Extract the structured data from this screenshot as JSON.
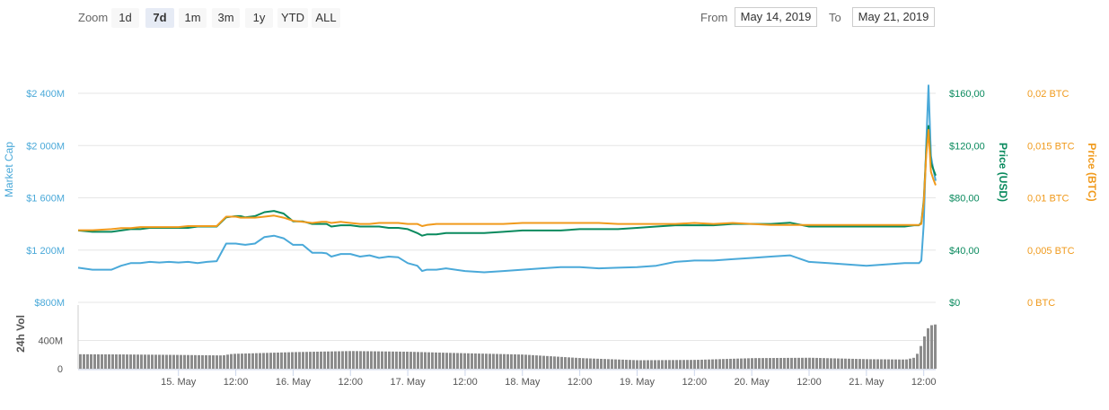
{
  "toolbar": {
    "zoom_label": "Zoom",
    "zoom_buttons": [
      "1d",
      "7d",
      "1m",
      "3m",
      "1y",
      "YTD",
      "ALL"
    ],
    "active_zoom": "7d",
    "from_label": "From",
    "from_value": "May 14, 2019",
    "to_label": "To",
    "to_value": "May 21, 2019"
  },
  "chart_data": {
    "type": "line",
    "axes": {
      "market_cap": {
        "title": "Market Cap",
        "ticks": [
          "$800M",
          "$1 200M",
          "$1 600M",
          "$2 000M",
          "$2 400M"
        ],
        "ylim": [
          800,
          2400
        ],
        "unit": "M USD",
        "color": "#4aa9d9"
      },
      "price_usd": {
        "title": "Price (USD)",
        "ticks": [
          "$0",
          "$40,00",
          "$80,00",
          "$120,00",
          "$160,00"
        ],
        "ylim": [
          0,
          160
        ],
        "color": "#0a8a5e"
      },
      "price_btc": {
        "title": "Price (BTC)",
        "ticks": [
          "0 BTC",
          "0,005 BTC",
          "0,01 BTC",
          "0,015 BTC",
          "0,02 BTC"
        ],
        "ylim": [
          0,
          0.02
        ],
        "color": "#f09a1c"
      },
      "volume": {
        "title": "24h Vol",
        "ticks": [
          "0",
          "400M"
        ],
        "ylim": [
          0,
          900
        ],
        "color": "#888888"
      }
    },
    "x_ticks": [
      "15. May",
      "12:00",
      "16. May",
      "12:00",
      "17. May",
      "12:00",
      "18. May",
      "12:00",
      "19. May",
      "12:00",
      "20. May",
      "12:00",
      "21. May",
      "12:00"
    ],
    "x_tick_hours": [
      24,
      36,
      48,
      60,
      72,
      84,
      96,
      108,
      120,
      132,
      144,
      156,
      168,
      180
    ],
    "xlim_hours": [
      3,
      182.5
    ],
    "series": [
      {
        "name": "Market Cap",
        "axis": "market_cap",
        "x_hours": [
          3,
          6,
          10,
          12,
          14,
          16,
          18,
          20,
          22,
          24,
          26,
          28,
          30,
          32,
          34,
          36,
          37,
          38,
          40,
          42,
          44,
          46,
          48,
          50,
          52,
          54,
          55,
          56,
          58,
          60,
          62,
          64,
          66,
          68,
          70,
          72,
          74,
          75,
          76,
          78,
          80,
          84,
          88,
          92,
          96,
          100,
          104,
          108,
          112,
          116,
          120,
          124,
          128,
          132,
          136,
          140,
          144,
          148,
          152,
          156,
          160,
          164,
          168,
          172,
          176,
          178,
          179,
          179.5,
          180,
          180.5,
          181,
          181.5,
          182,
          182.5
        ],
        "values": [
          1065,
          1050,
          1050,
          1080,
          1100,
          1100,
          1110,
          1105,
          1110,
          1105,
          1110,
          1100,
          1110,
          1115,
          1250,
          1250,
          1245,
          1240,
          1250,
          1300,
          1310,
          1290,
          1240,
          1240,
          1180,
          1180,
          1175,
          1150,
          1170,
          1170,
          1150,
          1160,
          1140,
          1150,
          1145,
          1100,
          1080,
          1040,
          1050,
          1050,
          1060,
          1040,
          1030,
          1040,
          1050,
          1060,
          1070,
          1070,
          1060,
          1065,
          1070,
          1080,
          1110,
          1120,
          1120,
          1130,
          1140,
          1150,
          1160,
          1110,
          1100,
          1090,
          1080,
          1090,
          1100,
          1100,
          1100,
          1120,
          1400,
          2000,
          2460,
          1920,
          1820,
          1730
        ]
      },
      {
        "name": "Price (USD)",
        "axis": "price_usd",
        "x_hours": [
          3,
          6,
          10,
          12,
          14,
          16,
          18,
          20,
          22,
          24,
          26,
          28,
          30,
          32,
          34,
          36,
          37,
          38,
          40,
          42,
          44,
          46,
          48,
          50,
          52,
          54,
          55,
          56,
          58,
          60,
          62,
          64,
          66,
          68,
          70,
          72,
          74,
          75,
          76,
          78,
          80,
          84,
          88,
          92,
          96,
          100,
          104,
          108,
          112,
          116,
          120,
          124,
          128,
          132,
          136,
          140,
          144,
          148,
          152,
          156,
          160,
          164,
          168,
          172,
          176,
          178,
          179,
          179.5,
          180,
          180.5,
          181,
          181.5,
          182,
          182.5
        ],
        "values": [
          55,
          54,
          54,
          55,
          56,
          56,
          57,
          57,
          57,
          57,
          57,
          58,
          58,
          58,
          65,
          66,
          66,
          65,
          66,
          69,
          70,
          68,
          62,
          62,
          60,
          60,
          60,
          58,
          59,
          59,
          58,
          58,
          58,
          57,
          57,
          56,
          53,
          51,
          52,
          52,
          53,
          53,
          53,
          54,
          55,
          55,
          55,
          56,
          56,
          56,
          57,
          58,
          59,
          59,
          59,
          60,
          60,
          60,
          61,
          58,
          58,
          58,
          58,
          58,
          58,
          59,
          59,
          61,
          78,
          115,
          135,
          107,
          102,
          97
        ]
      },
      {
        "name": "Price (BTC)",
        "axis": "price_btc",
        "x_hours": [
          3,
          6,
          10,
          12,
          14,
          16,
          18,
          20,
          22,
          24,
          26,
          28,
          30,
          32,
          34,
          36,
          37,
          38,
          40,
          42,
          44,
          46,
          48,
          50,
          52,
          54,
          55,
          56,
          58,
          60,
          62,
          64,
          66,
          68,
          70,
          72,
          74,
          75,
          76,
          78,
          80,
          84,
          88,
          92,
          96,
          100,
          104,
          108,
          112,
          116,
          120,
          124,
          128,
          132,
          136,
          140,
          144,
          148,
          152,
          156,
          160,
          164,
          168,
          172,
          176,
          178,
          179,
          179.5,
          180,
          180.5,
          181,
          181.5,
          182,
          182.5
        ],
        "values": [
          0.0069,
          0.0069,
          0.007,
          0.0071,
          0.0071,
          0.0072,
          0.0072,
          0.0072,
          0.0072,
          0.0072,
          0.0073,
          0.0073,
          0.0073,
          0.0073,
          0.0082,
          0.0082,
          0.0081,
          0.0081,
          0.0081,
          0.0082,
          0.0083,
          0.0081,
          0.0078,
          0.0077,
          0.0076,
          0.0077,
          0.0077,
          0.0076,
          0.0077,
          0.0076,
          0.0075,
          0.0075,
          0.0076,
          0.0076,
          0.0076,
          0.0075,
          0.0075,
          0.0073,
          0.0074,
          0.0075,
          0.0075,
          0.0075,
          0.0075,
          0.0075,
          0.0076,
          0.0076,
          0.0076,
          0.0076,
          0.0076,
          0.0075,
          0.0075,
          0.0075,
          0.0075,
          0.0076,
          0.0075,
          0.0076,
          0.0075,
          0.0074,
          0.0074,
          0.0074,
          0.0074,
          0.0074,
          0.0074,
          0.0074,
          0.0074,
          0.0074,
          0.0074,
          0.0075,
          0.0095,
          0.014,
          0.0165,
          0.0125,
          0.0118,
          0.0112
        ]
      },
      {
        "name": "24h Vol",
        "axis": "volume",
        "type": "column",
        "x_hours": [
          3,
          12,
          24,
          33,
          35,
          48,
          60,
          72,
          80,
          96,
          108,
          120,
          132,
          144,
          156,
          168,
          176,
          178,
          179,
          180,
          180.5,
          181,
          182.5
        ],
        "values": [
          205,
          202,
          195,
          188,
          210,
          235,
          250,
          240,
          225,
          200,
          150,
          120,
          125,
          150,
          155,
          135,
          130,
          160,
          300,
          480,
          560,
          610,
          630
        ]
      }
    ]
  }
}
